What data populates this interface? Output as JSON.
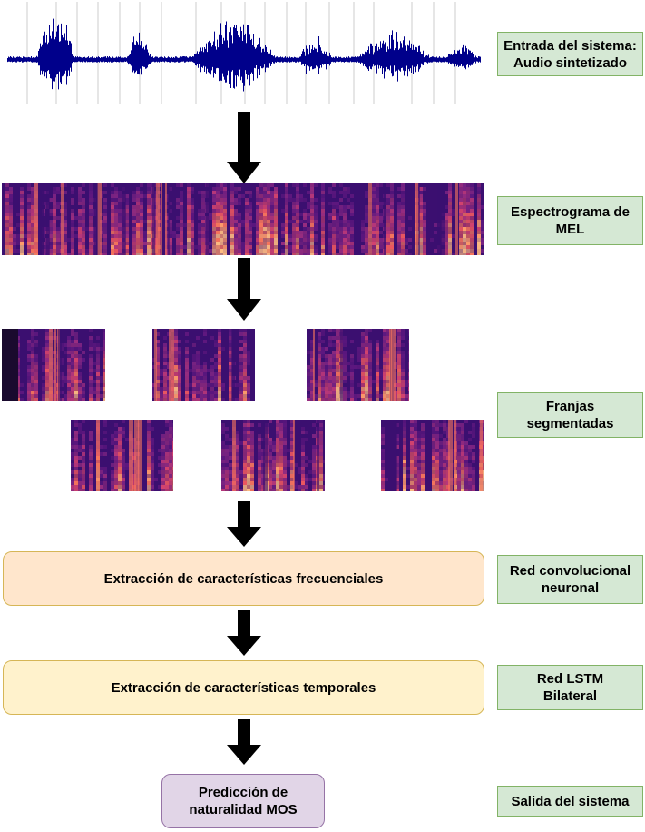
{
  "labels": {
    "input": "Entrada del sistema:\nAudio sintetizado",
    "mel": "Espectrograma de\nMEL",
    "segments": "Franjas\nsegmentadas",
    "cnn": "Red convolucional\nneuronal",
    "lstm": "Red LSTM\nBilateral",
    "output": "Salida del sistema"
  },
  "stages": {
    "frequency": "Extracción de características frecuenciales",
    "temporal": "Extracción de características temporales",
    "prediction": "Predicción de\nnaturalidad MOS"
  },
  "colors": {
    "waveform": "#00008b",
    "spectrogram_base": "#3b0f70",
    "spectrogram_hot": "#fc8961",
    "green_fill": "#d5e8d4",
    "orange_fill": "#ffe6cc",
    "yellow_fill": "#fff2cc",
    "purple_fill": "#e1d5e7"
  }
}
